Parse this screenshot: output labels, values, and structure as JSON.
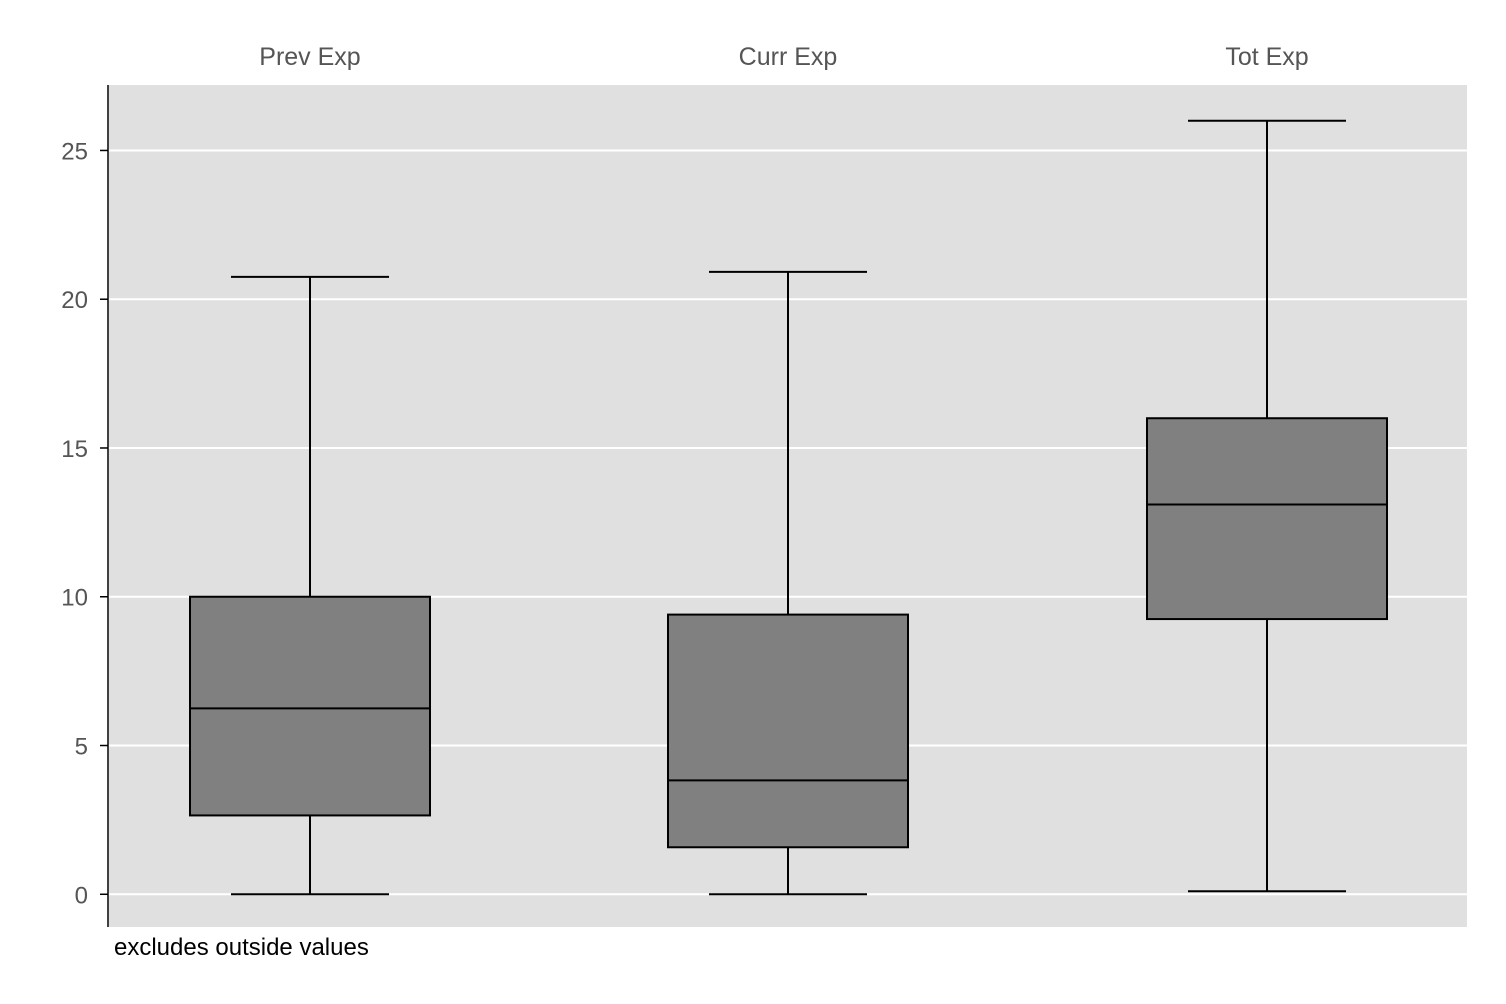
{
  "chart_data": {
    "type": "box",
    "groups": [
      {
        "label": "Prev Exp",
        "whisker_low": 0,
        "q1": 2.65,
        "median": 6.25,
        "q3": 10.0,
        "whisker_high": 20.75
      },
      {
        "label": "Curr Exp",
        "whisker_low": 0,
        "q1": 1.58,
        "median": 3.83,
        "q3": 9.4,
        "whisker_high": 20.92
      },
      {
        "label": "Tot Exp",
        "whisker_low": 0.1,
        "q1": 9.25,
        "median": 13.1,
        "q3": 16.0,
        "whisker_high": 26.0
      }
    ],
    "y_ticks": [
      0,
      5,
      10,
      15,
      20,
      25
    ],
    "ylim": [
      -1.1,
      27.2
    ],
    "grid": true,
    "note": "excludes outside values",
    "colors": {
      "plot_background": "#e0e0e0",
      "grid": "#ffffff",
      "box_fill": "#808080",
      "line": "#000000",
      "label_text": "#555555"
    }
  }
}
